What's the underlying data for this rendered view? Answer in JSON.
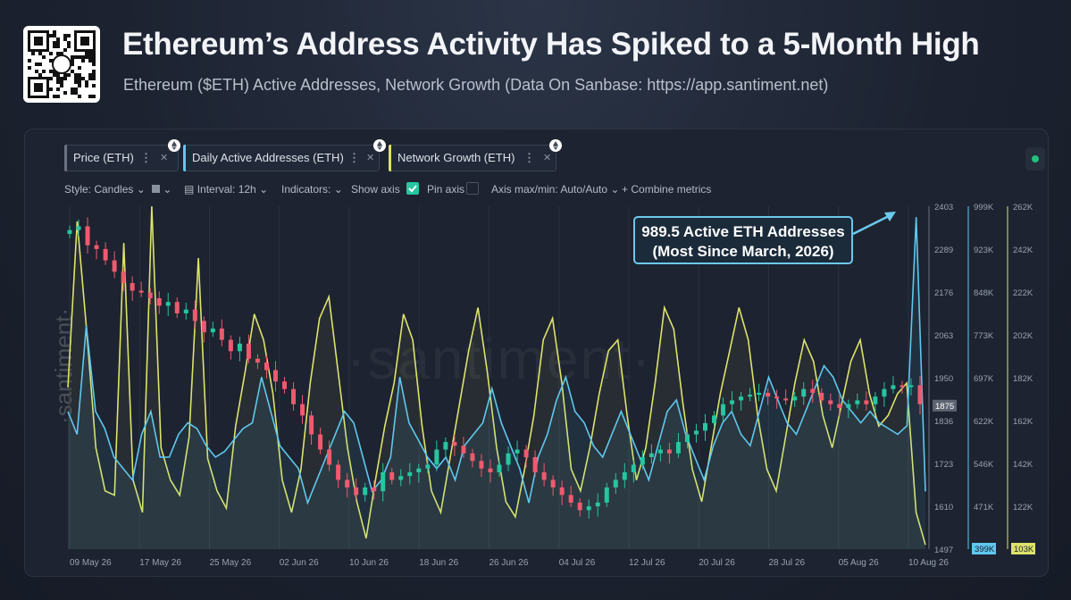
{
  "header": {
    "title": "Ethereum’s Address Activity Has Spiked to a 5-Month High",
    "subtitle": "Ethereum ($ETH) Active Addresses, Network Growth (Data On Sanbase: https://app.santiment.net)"
  },
  "metrics": [
    {
      "label": "Price (ETH)",
      "color": "#6b7280"
    },
    {
      "label": "Daily Active Addresses (ETH)",
      "color": "#5ec8ef"
    },
    {
      "label": "Network Growth (ETH)",
      "color": "#dde36a"
    }
  ],
  "toolbar": {
    "style": "Style: Candles",
    "interval": "Interval: 12h",
    "indicators": "Indicators:",
    "show_axis": "Show axis",
    "pin_axis": "Pin axis",
    "axis_maxmin": "Axis max/min: Auto/Auto",
    "combine": "Combine metrics"
  },
  "watermark": "·santiment·",
  "callout": {
    "line1": "989.5 Active ETH Addresses",
    "line2": "(Most Since March, 2026)"
  },
  "chart_data": {
    "type": "line",
    "x_labels": [
      "09 May 26",
      "17 May 26",
      "25 May 26",
      "02 Jun 26",
      "10 Jun 26",
      "18 Jun 26",
      "26 Jun 26",
      "04 Jul 26",
      "12 Jul 26",
      "20 Jul 26",
      "28 Jul 26",
      "05 Aug 26",
      "10 Aug 26"
    ],
    "axes": {
      "price": {
        "ticks": [
          "2403",
          "2289",
          "2176",
          "2063",
          "1950",
          "1836",
          "1723",
          "1610",
          "1497"
        ],
        "current": "1875",
        "range": [
          1497,
          2403
        ]
      },
      "active_addresses": {
        "ticks": [
          "999K",
          "923K",
          "848K",
          "773K",
          "697K",
          "622K",
          "546K",
          "471K"
        ],
        "current": "399K",
        "range": [
          399,
          999
        ],
        "color": "#5ec8ef"
      },
      "network_growth": {
        "ticks": [
          "262K",
          "242K",
          "222K",
          "202K",
          "182K",
          "162K",
          "142K",
          "122K"
        ],
        "current": "103K",
        "range": [
          103,
          262
        ],
        "color": "#dde36a"
      }
    },
    "series": [
      {
        "name": "Price (ETH)",
        "type": "candles",
        "up_color": "#26c6a0",
        "down_color": "#ef5a6f",
        "close": [
          2340,
          2350,
          2300,
          2290,
          2260,
          2230,
          2200,
          2180,
          2175,
          2160,
          2140,
          2150,
          2120,
          2130,
          2100,
          2070,
          2080,
          2050,
          2020,
          2040,
          2000,
          1990,
          1970,
          1940,
          1920,
          1880,
          1850,
          1800,
          1760,
          1720,
          1680,
          1660,
          1640,
          1660,
          1650,
          1700,
          1680,
          1690,
          1700,
          1710,
          1720,
          1760,
          1780,
          1770,
          1750,
          1730,
          1710,
          1700,
          1720,
          1750,
          1760,
          1740,
          1700,
          1680,
          1660,
          1640,
          1620,
          1600,
          1610,
          1620,
          1660,
          1680,
          1700,
          1720,
          1740,
          1750,
          1760,
          1750,
          1780,
          1800,
          1810,
          1830,
          1850,
          1880,
          1890,
          1900,
          1905,
          1910,
          1900,
          1895,
          1890,
          1900,
          1920,
          1910,
          1890,
          1880,
          1870,
          1880,
          1890,
          1880,
          1900,
          1920,
          1930,
          1925,
          1930,
          1880
        ]
      },
      {
        "name": "Daily Active Addresses (ETH)",
        "values": [
          640,
          600,
          790,
          640,
          610,
          560,
          540,
          520,
          600,
          640,
          560,
          560,
          600,
          620,
          610,
          580,
          560,
          570,
          590,
          610,
          620,
          700,
          640,
          580,
          560,
          540,
          480,
          520,
          560,
          600,
          640,
          620,
          560,
          500,
          520,
          560,
          700,
          620,
          590,
          560,
          540,
          560,
          520,
          580,
          600,
          620,
          680,
          620,
          580,
          540,
          480,
          560,
          600,
          660,
          700,
          640,
          620,
          580,
          560,
          600,
          640,
          600,
          560,
          520,
          580,
          640,
          660,
          600,
          560,
          520,
          580,
          620,
          640,
          600,
          580,
          640,
          700,
          660,
          620,
          600,
          640,
          680,
          720,
          700,
          660,
          640,
          620,
          640,
          620,
          610,
          600,
          615,
          980,
          500
        ]
      },
      {
        "name": "Network Growth (ETH)",
        "values": [
          178,
          255,
          205,
          150,
          130,
          128,
          245,
          135,
          120,
          262,
          150,
          135,
          128,
          155,
          238,
          145,
          130,
          122,
          160,
          185,
          212,
          200,
          175,
          135,
          120,
          140,
          180,
          210,
          220,
          185,
          150,
          125,
          108,
          135,
          160,
          180,
          212,
          200,
          160,
          130,
          120,
          145,
          170,
          195,
          215,
          185,
          150,
          125,
          118,
          140,
          165,
          200,
          210,
          180,
          140,
          130,
          150,
          175,
          195,
          200,
          165,
          135,
          150,
          180,
          215,
          205,
          170,
          140,
          125,
          150,
          175,
          195,
          215,
          200,
          165,
          140,
          130,
          155,
          180,
          200,
          190,
          165,
          150,
          170,
          190,
          200,
          175,
          160,
          165,
          175,
          180,
          120,
          105
        ]
      }
    ]
  }
}
